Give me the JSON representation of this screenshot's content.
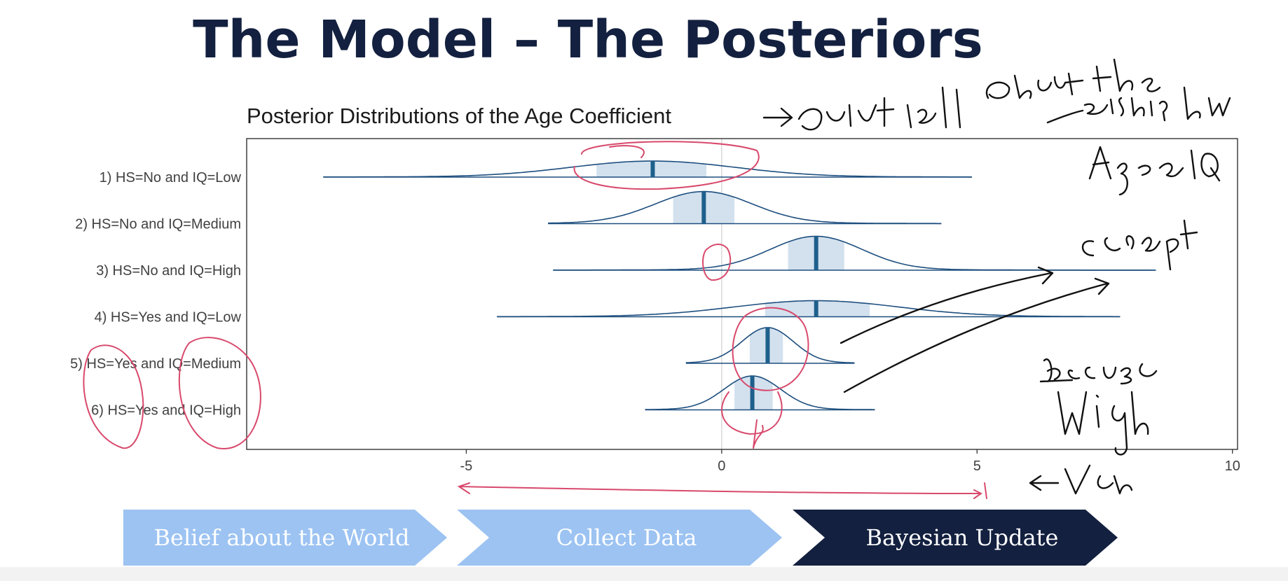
{
  "slide": {
    "title": "The Model – The Posteriors"
  },
  "chart_data": {
    "type": "ridgeline",
    "title": "Posterior Distributions of the Age Coefficient",
    "xlim": [
      -9.3,
      10.1
    ],
    "x_ticks": [
      -5,
      0,
      5,
      10
    ],
    "x_tick_labels": [
      "-5",
      "0",
      "5",
      "10"
    ],
    "reference_line": 0,
    "grid": false,
    "series": [
      {
        "name": "1) HS=No and IQ=Low",
        "median": -1.35,
        "ci50": [
          -2.45,
          -0.3
        ],
        "range": [
          -7.8,
          4.9
        ],
        "sd": 1.6,
        "peak": 0.45
      },
      {
        "name": "2) HS=No and IQ=Medium",
        "median": -0.35,
        "ci50": [
          -0.95,
          0.25
        ],
        "range": [
          -3.4,
          4.3
        ],
        "sd": 0.95,
        "peak": 0.9
      },
      {
        "name": "3) HS=No and IQ=High",
        "median": 1.85,
        "ci50": [
          1.3,
          2.4
        ],
        "range": [
          -3.3,
          8.5
        ],
        "sd": 0.9,
        "peak": 0.95
      },
      {
        "name": "4) HS=Yes and IQ=Low",
        "median": 1.85,
        "ci50": [
          0.85,
          2.9
        ],
        "range": [
          -4.4,
          7.8
        ],
        "sd": 1.6,
        "peak": 0.45
      },
      {
        "name": "5) HS=Yes and IQ=Medium",
        "median": 0.9,
        "ci50": [
          0.55,
          1.2
        ],
        "range": [
          -0.7,
          2.6
        ],
        "sd": 0.5,
        "peak": 1.0
      },
      {
        "name": "6) HS=Yes and IQ=High",
        "median": 0.6,
        "ci50": [
          0.25,
          1.0
        ],
        "range": [
          -1.5,
          3.0
        ],
        "sd": 0.55,
        "peak": 0.95
      }
    ],
    "colors": {
      "curve": "#1d4e7e",
      "median": "#1e5f8c",
      "ci_fill": "#d3e1ee",
      "zero_line": "#d9d9d9",
      "panel_border": "#333333"
    }
  },
  "process_steps": [
    {
      "label": "Belief about the World",
      "color": "#9cc3f2"
    },
    {
      "label": "Collect Data",
      "color": "#9cc3f2"
    },
    {
      "label": "Bayesian Update",
      "color": "#13203f"
    }
  ]
}
